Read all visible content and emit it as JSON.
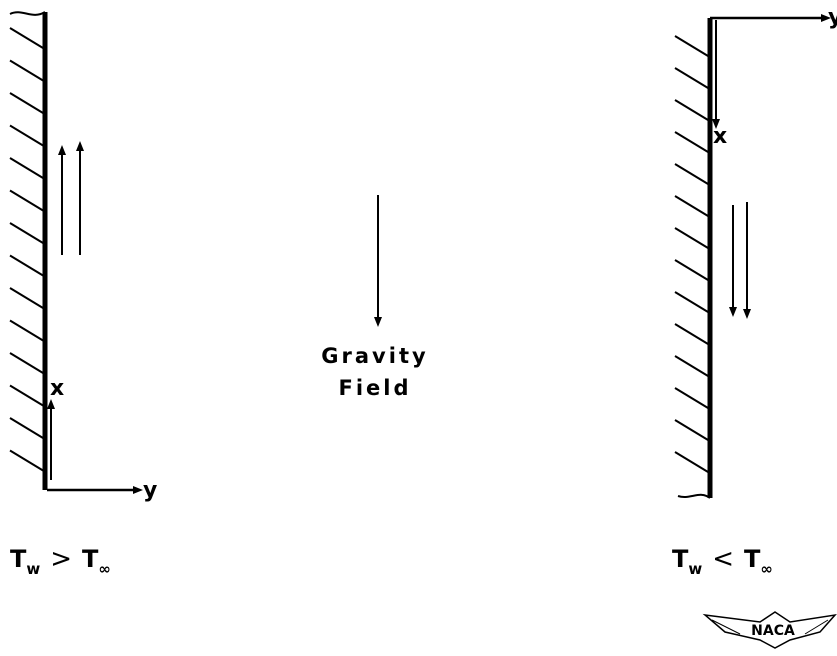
{
  "gravity": {
    "line1": "Gravity",
    "line2": "Field"
  },
  "left_plate": {
    "axis_x": "x",
    "axis_y": "y",
    "condition": {
      "t": "T",
      "w": "w",
      "rel": ">",
      "inf": "∞"
    }
  },
  "right_plate": {
    "axis_x": "x",
    "axis_y": "y",
    "condition": {
      "t": "T",
      "w": "w",
      "rel": "<",
      "inf": "∞"
    }
  },
  "logo": {
    "text": "NACA"
  }
}
